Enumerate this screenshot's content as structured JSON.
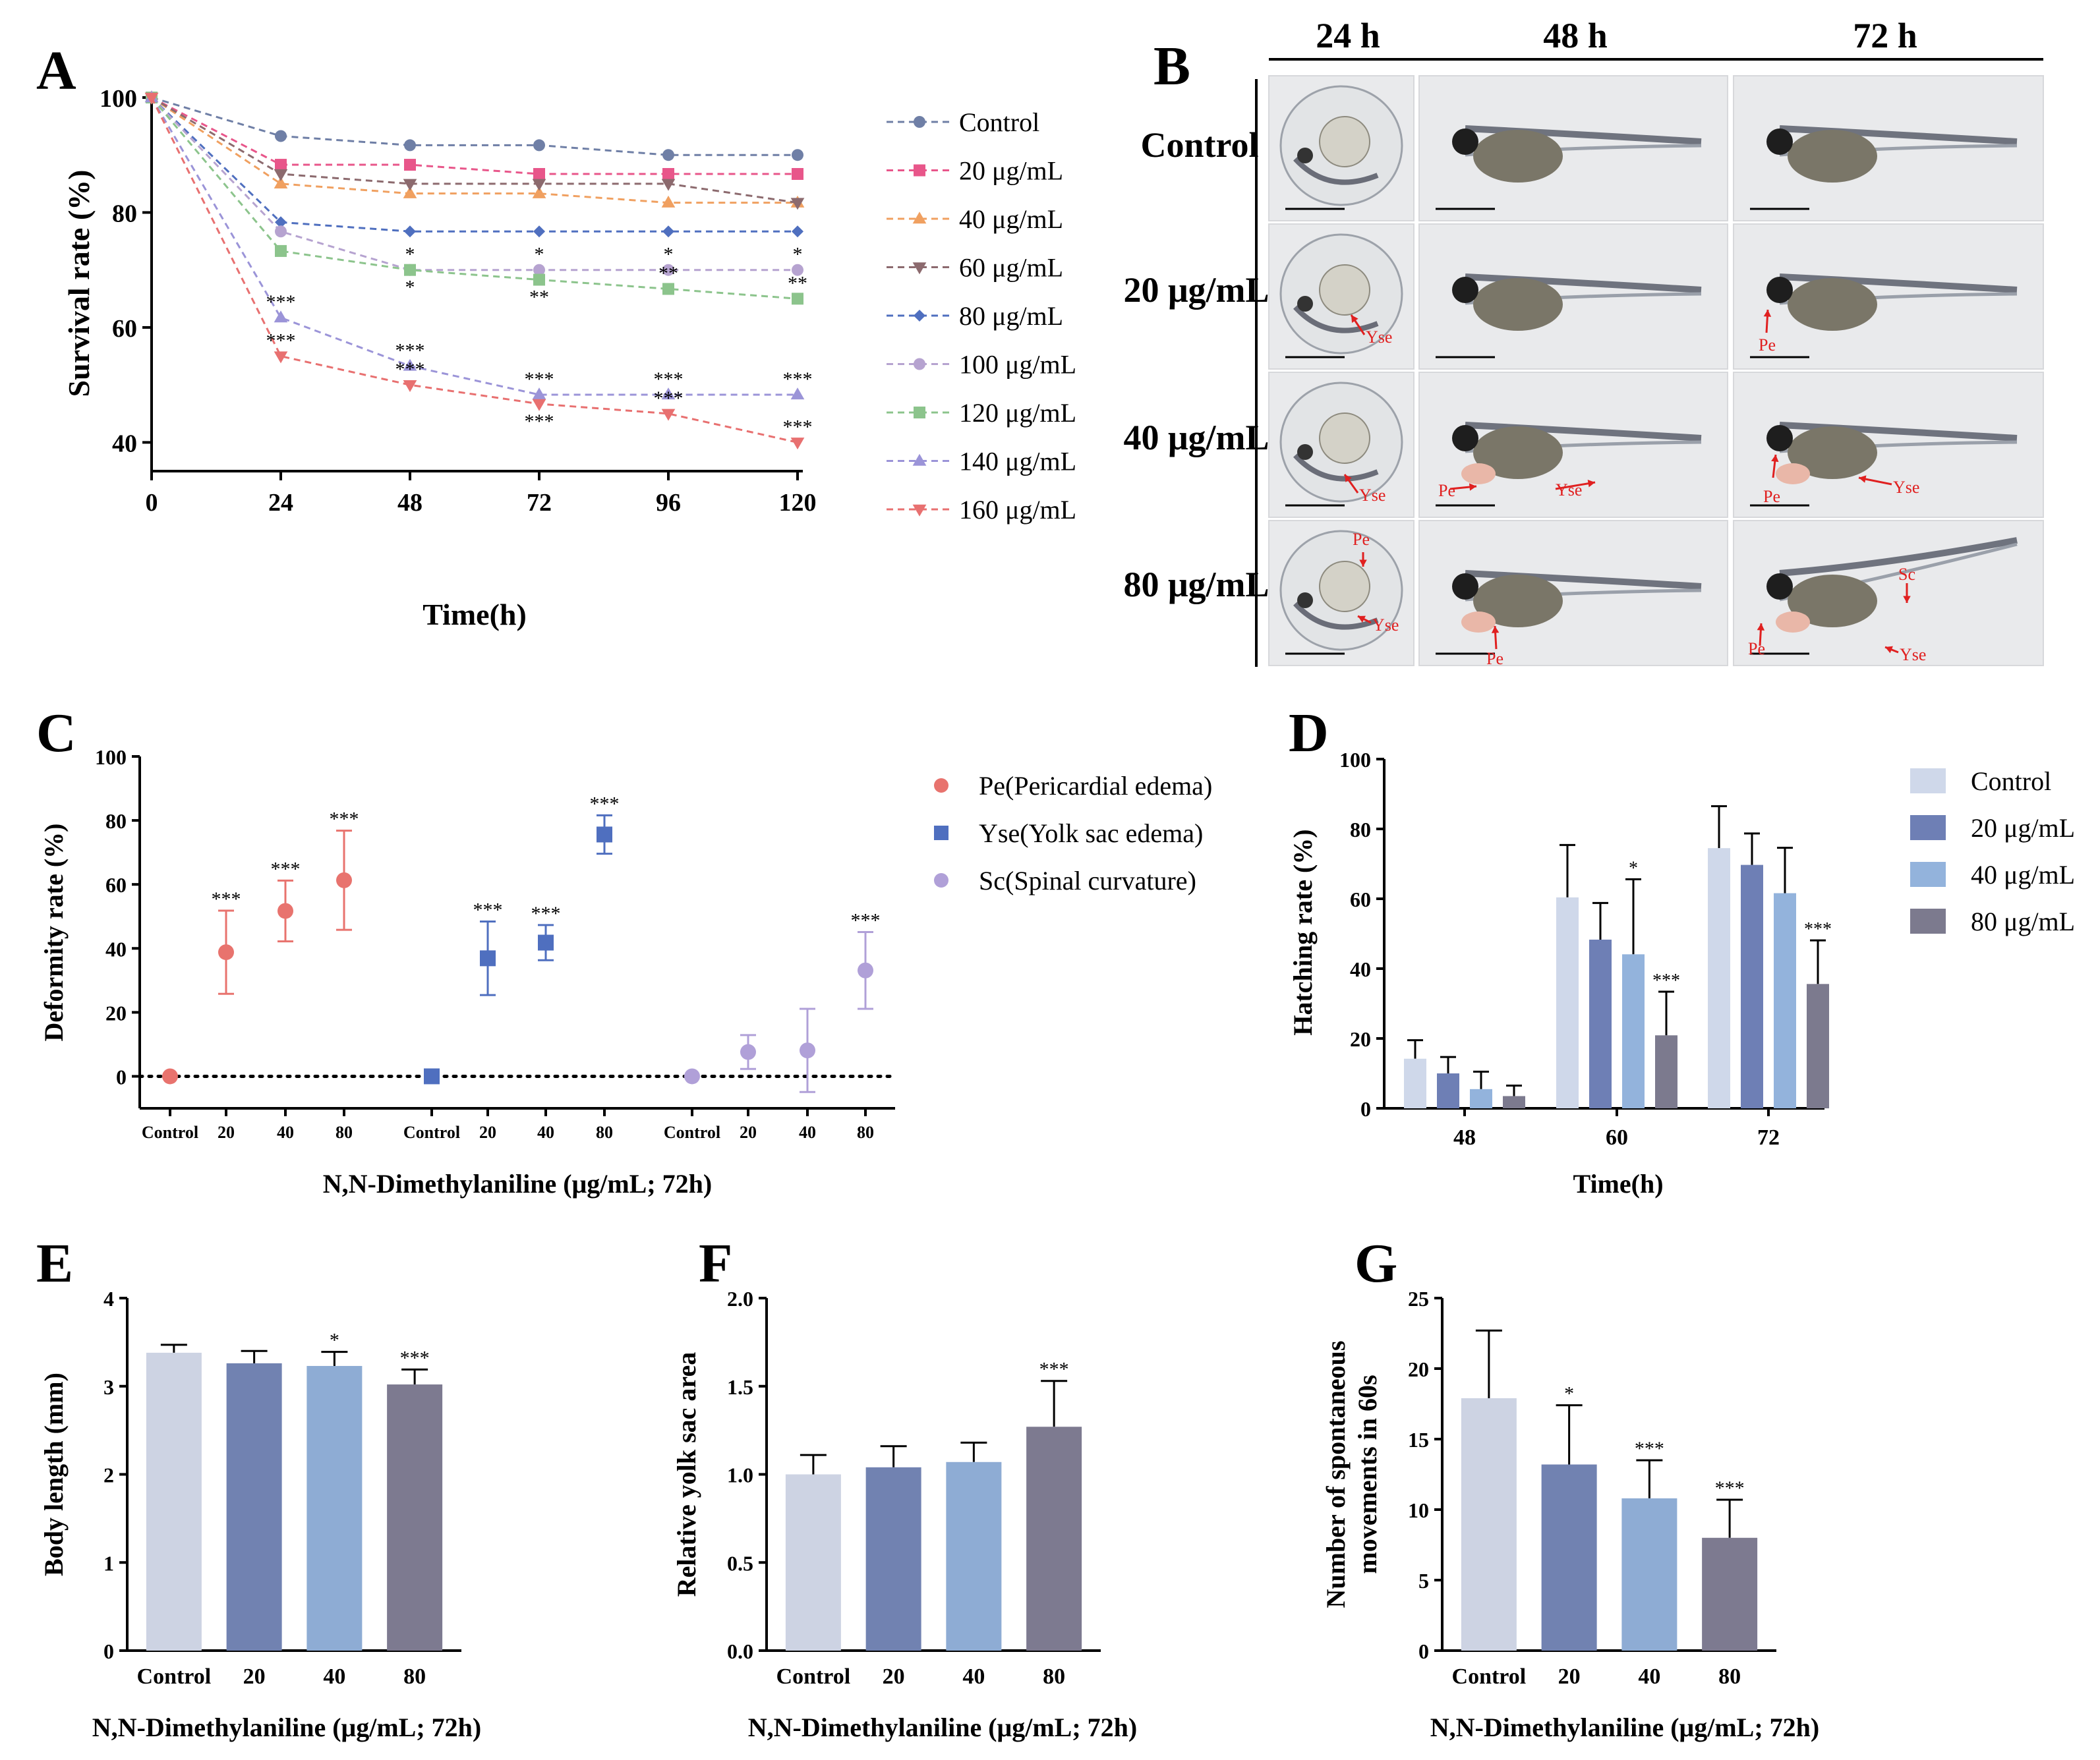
{
  "colors": {
    "control": "#6f7fa6",
    "c20": "#e8568a",
    "c40": "#f0a060",
    "c60": "#8c6a6e",
    "c80": "#4f6fbf",
    "c100": "#b6a3d0",
    "c120": "#8cc48c",
    "c140": "#9b94d8",
    "c160": "#e87070",
    "pe": "#e8736e",
    "yse": "#4f6fbf",
    "sc": "#b0a0d8",
    "bar_control": "#cdd3e3",
    "bar_20": "#7182b1",
    "bar_40": "#8eacd4",
    "bar_80": "#7d7a90",
    "hatch_control": "#cfd8ea",
    "hatch_20": "#6e7fb5",
    "hatch_40": "#93b3dc",
    "hatch_80": "#7c7a8e"
  },
  "panels": {
    "a": "A",
    "b": "B",
    "c": "C",
    "d": "D",
    "e": "E",
    "f": "F",
    "g": "G"
  },
  "panel_b": {
    "col_headers": [
      "24 h",
      "48 h",
      "72 h"
    ],
    "row_headers": [
      "Control",
      "20 μg/mL",
      "40 μg/mL",
      "80 μg/mL"
    ],
    "labels": {
      "yse": "Yse",
      "pe": "Pe",
      "sc": "Sc"
    }
  },
  "chart_data": [
    {
      "id": "A",
      "type": "line",
      "xlabel": "Time(h)",
      "ylabel": "Survival rate (%)",
      "x": [
        0,
        24,
        48,
        72,
        96,
        120
      ],
      "xlim": [
        0,
        120
      ],
      "ylim": [
        35,
        100
      ],
      "yticks": [
        40,
        60,
        80,
        100
      ],
      "series": [
        {
          "name": "Control",
          "values": [
            100,
            93.3,
            91.7,
            91.7,
            90,
            90
          ],
          "marker": "circle",
          "color": "#6f7fa6"
        },
        {
          "name": "20 μg/mL",
          "values": [
            100,
            88.3,
            88.3,
            86.7,
            86.7,
            86.7
          ],
          "marker": "square",
          "color": "#e8568a"
        },
        {
          "name": "40 μg/mL",
          "values": [
            100,
            85,
            83.3,
            83.3,
            81.7,
            81.7
          ],
          "marker": "triangle",
          "color": "#f0a060"
        },
        {
          "name": "60 μg/mL",
          "values": [
            100,
            86.7,
            85,
            85,
            85,
            81.7
          ],
          "marker": "triangle-down",
          "color": "#8c6a6e"
        },
        {
          "name": "80 μg/mL",
          "values": [
            100,
            78.3,
            76.7,
            76.7,
            76.7,
            76.7
          ],
          "marker": "diamond",
          "color": "#4f6fbf"
        },
        {
          "name": "100 μg/mL",
          "values": [
            100,
            76.7,
            70,
            70,
            70,
            70
          ],
          "marker": "circle",
          "color": "#b6a3d0"
        },
        {
          "name": "120 μg/mL",
          "values": [
            100,
            73.3,
            70,
            68.3,
            66.7,
            65
          ],
          "marker": "square",
          "color": "#8cc48c"
        },
        {
          "name": "140 μg/mL",
          "values": [
            100,
            61.7,
            53.3,
            48.3,
            48.3,
            48.3
          ],
          "marker": "triangle",
          "color": "#9b94d8"
        },
        {
          "name": "160 μg/mL",
          "values": [
            100,
            55,
            50,
            46.7,
            45,
            40
          ],
          "marker": "triangle-down",
          "color": "#e87070"
        }
      ],
      "annotations": [
        {
          "x": 48,
          "y": 70,
          "text": "*",
          "pos": "above"
        },
        {
          "x": 48,
          "y": 70,
          "text": "*",
          "pos": "below"
        },
        {
          "x": 72,
          "y": 70,
          "text": "*",
          "pos": "above"
        },
        {
          "x": 72,
          "y": 68.3,
          "text": "**",
          "pos": "below"
        },
        {
          "x": 96,
          "y": 70,
          "text": "*",
          "pos": "above"
        },
        {
          "x": 96,
          "y": 66.7,
          "text": "**",
          "pos": "above"
        },
        {
          "x": 120,
          "y": 70,
          "text": "*",
          "pos": "above"
        },
        {
          "x": 120,
          "y": 65,
          "text": "**",
          "pos": "above"
        },
        {
          "x": 24,
          "y": 61.7,
          "text": "***",
          "pos": "above"
        },
        {
          "x": 24,
          "y": 55,
          "text": "***",
          "pos": "above"
        },
        {
          "x": 48,
          "y": 53.3,
          "text": "***",
          "pos": "above"
        },
        {
          "x": 48,
          "y": 50,
          "text": "***",
          "pos": "above"
        },
        {
          "x": 72,
          "y": 48.3,
          "text": "***",
          "pos": "above"
        },
        {
          "x": 72,
          "y": 46.7,
          "text": "***",
          "pos": "below"
        },
        {
          "x": 96,
          "y": 48.3,
          "text": "***",
          "pos": "above"
        },
        {
          "x": 96,
          "y": 45,
          "text": "***",
          "pos": "above"
        },
        {
          "x": 120,
          "y": 48.3,
          "text": "***",
          "pos": "above"
        },
        {
          "x": 120,
          "y": 40,
          "text": "***",
          "pos": "above"
        }
      ]
    },
    {
      "id": "C",
      "type": "scatter",
      "xlabel": "N,N-Dimethylaniline (μg/mL; 72h)",
      "ylabel": "Deformity rate (%)",
      "ylim": [
        -10,
        100
      ],
      "yticks": [
        0,
        20,
        40,
        60,
        80,
        100
      ],
      "categories": [
        "Control",
        "20",
        "40",
        "80",
        "Control",
        "20",
        "40",
        "80",
        "Control",
        "20",
        "40",
        "80"
      ],
      "series": [
        {
          "name": "Pe(Pericardial edema)",
          "marker": "circle",
          "color": "#e8736e",
          "values": [
            0,
            38.8,
            51.7,
            61.3
          ],
          "errors": [
            0,
            13,
            9.5,
            15.5
          ],
          "sig": [
            "",
            "***",
            "***",
            "***"
          ]
        },
        {
          "name": "Yse(Yolk sac edema)",
          "marker": "square",
          "color": "#4f6fbf",
          "values": [
            0,
            36.9,
            41.8,
            75.6
          ],
          "errors": [
            0,
            11.5,
            5.5,
            6
          ],
          "sig": [
            "",
            "***",
            "***",
            "***"
          ]
        },
        {
          "name": "Sc(Spinal curvature)",
          "marker": "circle",
          "color": "#b0a0d8",
          "values": [
            0,
            7.6,
            8.1,
            33.1
          ],
          "errors": [
            0,
            5.3,
            13,
            12
          ],
          "sig": [
            "",
            "",
            "",
            "***"
          ]
        }
      ]
    },
    {
      "id": "D",
      "type": "bar",
      "xlabel": "Time(h)",
      "ylabel": "Hatching rate (%)",
      "categories": [
        "48",
        "60",
        "72"
      ],
      "ylim": [
        0,
        100
      ],
      "yticks": [
        0,
        20,
        40,
        60,
        80,
        100
      ],
      "series": [
        {
          "name": "Control",
          "values": [
            14.2,
            60.4,
            74.5
          ],
          "errors": [
            5.3,
            15,
            12
          ],
          "sig": [
            "",
            "",
            ""
          ]
        },
        {
          "name": "20 μg/mL",
          "values": [
            10,
            48.3,
            69.7
          ],
          "errors": [
            4.7,
            10.5,
            9
          ],
          "sig": [
            "",
            "",
            ""
          ]
        },
        {
          "name": "40 μg/mL",
          "values": [
            5.5,
            44.1,
            61.6
          ],
          "errors": [
            5,
            21.5,
            13
          ],
          "sig": [
            "",
            "*",
            ""
          ]
        },
        {
          "name": "80 μg/mL",
          "values": [
            3.5,
            20.9,
            35.6
          ],
          "errors": [
            3,
            12.5,
            12.5
          ],
          "sig": [
            "",
            "***",
            "***"
          ]
        }
      ]
    },
    {
      "id": "E",
      "type": "bar",
      "xlabel": "N,N-Dimethylaniline (μg/mL; 72h)",
      "ylabel": "Body length (mm)",
      "categories": [
        "Control",
        "20",
        "40",
        "80"
      ],
      "ylim": [
        0,
        4
      ],
      "yticks": [
        0,
        1,
        2,
        3,
        4
      ],
      "values": [
        3.38,
        3.26,
        3.23,
        3.02
      ],
      "errors": [
        0.09,
        0.14,
        0.16,
        0.17
      ],
      "sig": [
        "",
        "",
        "*",
        "***"
      ]
    },
    {
      "id": "F",
      "type": "bar",
      "xlabel": "N,N-Dimethylaniline (μg/mL; 72h)",
      "ylabel": "Relative yolk sac area",
      "categories": [
        "Control",
        "20",
        "40",
        "80"
      ],
      "ylim": [
        0,
        2
      ],
      "yticks": [
        "0.0",
        "0.5",
        "1.0",
        "1.5",
        "2.0"
      ],
      "values": [
        1.0,
        1.04,
        1.07,
        1.27
      ],
      "errors": [
        0.11,
        0.12,
        0.11,
        0.26
      ],
      "sig": [
        "",
        "",
        "",
        "***"
      ]
    },
    {
      "id": "G",
      "type": "bar",
      "xlabel": "N,N-Dimethylaniline (μg/mL; 72h)",
      "ylabel_lines": [
        "Number of spontaneous",
        "movements in 60s"
      ],
      "categories": [
        "Control",
        "20",
        "40",
        "80"
      ],
      "ylim": [
        0,
        25
      ],
      "yticks": [
        0,
        5,
        10,
        15,
        20,
        25
      ],
      "values": [
        17.9,
        13.2,
        10.8,
        8.0
      ],
      "errors": [
        4.8,
        4.2,
        2.7,
        2.7
      ],
      "sig": [
        "",
        "*",
        "***",
        "***"
      ]
    }
  ]
}
